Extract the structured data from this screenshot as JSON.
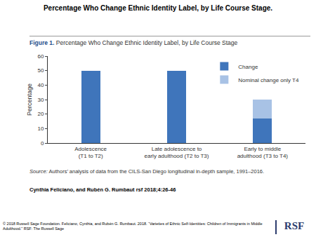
{
  "slide_title": "Percentage Who Change Ethnic Identity Label, by Life Course Stage.",
  "chart_data": {
    "type": "bar",
    "title": "Percentage Who Change Ethnic Identity Label, by Life Course Stage",
    "figure_label": "Figure 1.",
    "y_label": "Percentage",
    "categories": [
      "Adolescence\n(T1 to T2)",
      "Late adolescence to\nearly adulthood (T2 to T3)",
      "Early to middle\nadulthood (T3 to T4)"
    ],
    "series": [
      {
        "name": "Change",
        "color": "#3f75bb",
        "values": [
          50,
          50,
          17
        ]
      },
      {
        "name": "Nominal change only T4",
        "color": "#a8c2e5",
        "values": [
          0,
          0,
          13
        ]
      }
    ],
    "stacked": true,
    "ylim": [
      0,
      60
    ],
    "yticks": [
      0,
      10,
      20,
      30,
      40,
      50,
      60
    ],
    "grid": false,
    "legend": "top right"
  },
  "source_label": "Source:",
  "source_text": "Authors’ analysis of data from the CILS-San Diego longitudinal in-depth sample, 1991–2016.",
  "authors": "Cynthia Feliciano, and Rubén G. Rumbaut rsf 2018;4:26-46",
  "footer": "© 2018 Russell Sage Foundation. Feliciano, Cynthia, and Rubén G. Rumbaut. 2018. “Varieties of Ethnic Self-Identities: Children of Immigrants in Middle Adulthood.” RSF: The Russell Sage",
  "logo": "RSF"
}
